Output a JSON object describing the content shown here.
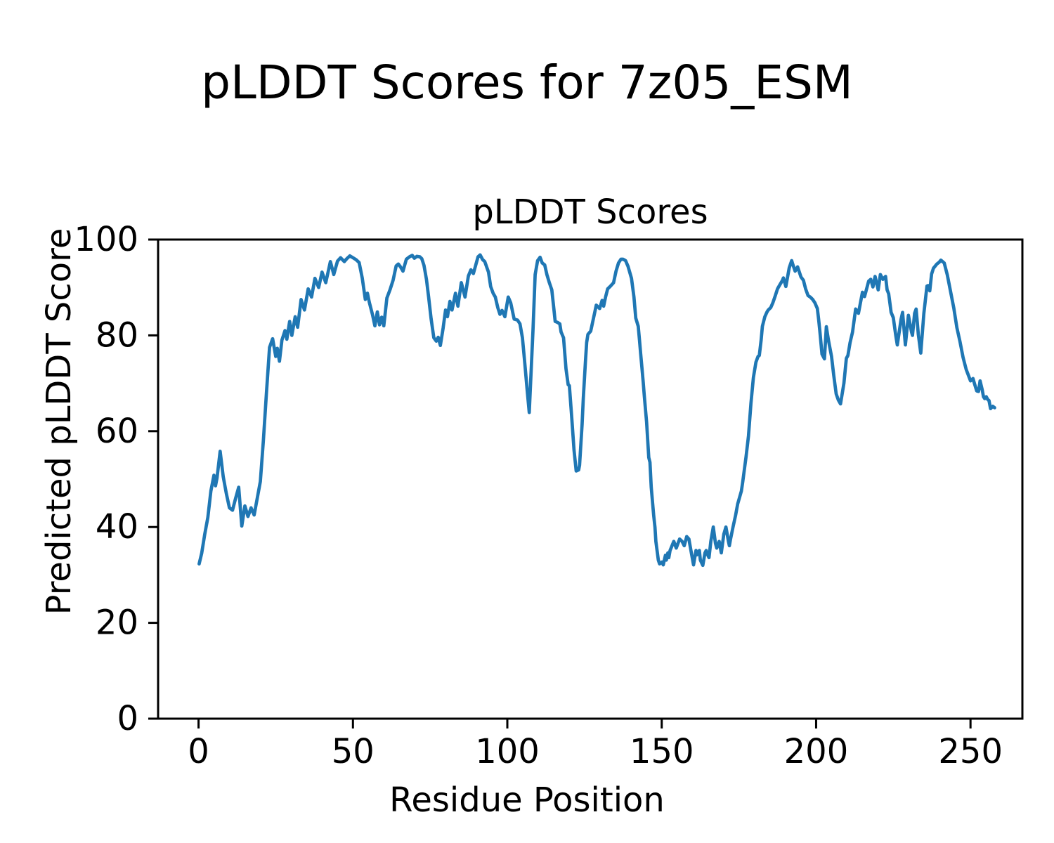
{
  "figure": {
    "suptitle": "pLDDT Scores for 7z05_ESM",
    "axes_title": "pLDDT Scores",
    "xlabel": "Residue Position",
    "ylabel": "Predicted pLDDT Score"
  },
  "colors": {
    "line": "#1f77b4",
    "spine": "#000000",
    "text": "#000000",
    "background": "#ffffff"
  },
  "chart_data": {
    "type": "line",
    "title": "pLDDT Scores",
    "suptitle": "pLDDT Scores for 7z05_ESM",
    "xlabel": "Residue Position",
    "ylabel": "Predicted pLDDT Score",
    "legend": false,
    "grid": false,
    "xlim": [
      -13.1,
      266.8
    ],
    "ylim": [
      0,
      100
    ],
    "xticks": [
      0,
      50,
      100,
      150,
      200,
      250
    ],
    "yticks": [
      0,
      20,
      40,
      60,
      80,
      100
    ],
    "series_name": "pLDDT",
    "points": [
      [
        0.2,
        32.3
      ],
      [
        1,
        34.5
      ],
      [
        2,
        38.5
      ],
      [
        3,
        42
      ],
      [
        4,
        47.5
      ],
      [
        5,
        50.8
      ],
      [
        5.5,
        48.6
      ],
      [
        6,
        50.3
      ],
      [
        7,
        55.8
      ],
      [
        8,
        50.5
      ],
      [
        9,
        47
      ],
      [
        10,
        44
      ],
      [
        11,
        43.5
      ],
      [
        12,
        46
      ],
      [
        13,
        48.3
      ],
      [
        14,
        40.2
      ],
      [
        15,
        44.4
      ],
      [
        16,
        42.2
      ],
      [
        17,
        44
      ],
      [
        18,
        42.5
      ],
      [
        19,
        46
      ],
      [
        20,
        49.5
      ],
      [
        21,
        58
      ],
      [
        22,
        68
      ],
      [
        23,
        77.5
      ],
      [
        24,
        79.3
      ],
      [
        25,
        75.6
      ],
      [
        25.5,
        77.3
      ],
      [
        26.2,
        74.6
      ],
      [
        27,
        79
      ],
      [
        28,
        81
      ],
      [
        28.6,
        79.2
      ],
      [
        29.5,
        82.9
      ],
      [
        30.2,
        80
      ],
      [
        31.3,
        83.9
      ],
      [
        32.1,
        81.7
      ],
      [
        33.2,
        87.5
      ],
      [
        34.3,
        85.3
      ],
      [
        35.5,
        89.7
      ],
      [
        36.6,
        88
      ],
      [
        37.7,
        91.9
      ],
      [
        38.9,
        90
      ],
      [
        40,
        93.2
      ],
      [
        41.2,
        91
      ],
      [
        42.7,
        95.4
      ],
      [
        43.8,
        92.7
      ],
      [
        45,
        95.5
      ],
      [
        46,
        96.2
      ],
      [
        47.2,
        95.4
      ],
      [
        48,
        96
      ],
      [
        49,
        96.6
      ],
      [
        50,
        96.2
      ],
      [
        51,
        95.8
      ],
      [
        52,
        95.2
      ],
      [
        53,
        92
      ],
      [
        54,
        87.5
      ],
      [
        54.7,
        88.8
      ],
      [
        55.3,
        86.9
      ],
      [
        56.3,
        84.4
      ],
      [
        57.1,
        82
      ],
      [
        57.9,
        84.9
      ],
      [
        58.6,
        82.2
      ],
      [
        59.3,
        83.8
      ],
      [
        60,
        82
      ],
      [
        61,
        87.8
      ],
      [
        62,
        89.5
      ],
      [
        63,
        91.5
      ],
      [
        64,
        94.5
      ],
      [
        64.7,
        94.9
      ],
      [
        65.4,
        94.3
      ],
      [
        66.2,
        93.4
      ],
      [
        67.3,
        95.9
      ],
      [
        68.3,
        96.4
      ],
      [
        69.2,
        96.7
      ],
      [
        69.9,
        96.1
      ],
      [
        70.7,
        96.5
      ],
      [
        71.7,
        96.4
      ],
      [
        72.3,
        96
      ],
      [
        73,
        94.6
      ],
      [
        73.8,
        91.7
      ],
      [
        74.5,
        88
      ],
      [
        75.3,
        83.5
      ],
      [
        76.2,
        79.5
      ],
      [
        77,
        78.8
      ],
      [
        77.6,
        79.6
      ],
      [
        78.3,
        77.9
      ],
      [
        79.2,
        81.5
      ],
      [
        80,
        85.3
      ],
      [
        80.6,
        83.9
      ],
      [
        81.4,
        87.1
      ],
      [
        82.1,
        85.3
      ],
      [
        83.2,
        88.8
      ],
      [
        84,
        86.1
      ],
      [
        85.1,
        91
      ],
      [
        86.3,
        88
      ],
      [
        87.4,
        92.4
      ],
      [
        88.2,
        93.7
      ],
      [
        89,
        92.9
      ],
      [
        90.5,
        96.4
      ],
      [
        91.2,
        96.8
      ],
      [
        92,
        95.8
      ],
      [
        92.7,
        95.4
      ],
      [
        93.9,
        93.2
      ],
      [
        94.6,
        90.2
      ],
      [
        95.4,
        88.8
      ],
      [
        96.1,
        88
      ],
      [
        96.9,
        85.8
      ],
      [
        97.6,
        84.4
      ],
      [
        98.3,
        85.2
      ],
      [
        99.2,
        83.9
      ],
      [
        100.3,
        88
      ],
      [
        101.1,
        86.8
      ],
      [
        102.2,
        83.4
      ],
      [
        103.3,
        83.2
      ],
      [
        104.1,
        82.4
      ],
      [
        104.9,
        79.5
      ],
      [
        105.6,
        74.6
      ],
      [
        106.4,
        68.8
      ],
      [
        107.1,
        63.9
      ],
      [
        108.3,
        81
      ],
      [
        109,
        92.7
      ],
      [
        109.8,
        95.6
      ],
      [
        110.6,
        96.3
      ],
      [
        111.3,
        95.1
      ],
      [
        112.1,
        94.7
      ],
      [
        112.8,
        92.7
      ],
      [
        113.6,
        91
      ],
      [
        114.4,
        89.5
      ],
      [
        115.1,
        85.3
      ],
      [
        115.5,
        82.9
      ],
      [
        116.3,
        82.7
      ],
      [
        117,
        82.4
      ],
      [
        117.4,
        80.7
      ],
      [
        118.2,
        79.5
      ],
      [
        119,
        73
      ],
      [
        119.7,
        69.7
      ],
      [
        120.1,
        69.5
      ],
      [
        120.8,
        63.4
      ],
      [
        121.6,
        56.1
      ],
      [
        122.3,
        51.7
      ],
      [
        123.1,
        51.9
      ],
      [
        123.4,
        52.9
      ],
      [
        124.2,
        61.4
      ],
      [
        124.6,
        66.8
      ],
      [
        125.3,
        74.6
      ],
      [
        125.7,
        78.5
      ],
      [
        126.1,
        80.2
      ],
      [
        127,
        80.9
      ],
      [
        128,
        83.9
      ],
      [
        128.8,
        86.3
      ],
      [
        129.9,
        85.6
      ],
      [
        130.7,
        87.3
      ],
      [
        131.2,
        86.1
      ],
      [
        131.8,
        88
      ],
      [
        132.5,
        89.7
      ],
      [
        133.3,
        90.2
      ],
      [
        134.4,
        91
      ],
      [
        135.2,
        93.4
      ],
      [
        136,
        95.1
      ],
      [
        136.8,
        95.9
      ],
      [
        137.5,
        95.9
      ],
      [
        138.3,
        95.6
      ],
      [
        139.1,
        94.4
      ],
      [
        140.2,
        91.9
      ],
      [
        141,
        88
      ],
      [
        141.6,
        83.6
      ],
      [
        142.4,
        81.9
      ],
      [
        142.8,
        79
      ],
      [
        143.2,
        76.1
      ],
      [
        143.6,
        73.2
      ],
      [
        144,
        70.2
      ],
      [
        144.3,
        67.8
      ],
      [
        144.7,
        64.9
      ],
      [
        145.1,
        61.9
      ],
      [
        145.8,
        54.5
      ],
      [
        146.2,
        53.5
      ],
      [
        146.6,
        48.3
      ],
      [
        147.4,
        42.4
      ],
      [
        147.8,
        40
      ],
      [
        148.1,
        37
      ],
      [
        148.5,
        35.1
      ],
      [
        148.9,
        33.1
      ],
      [
        149.3,
        32.3
      ],
      [
        150.1,
        32.7
      ],
      [
        150.5,
        32.1
      ],
      [
        151.2,
        34.1
      ],
      [
        151.5,
        33.1
      ],
      [
        152,
        34.6
      ],
      [
        152.3,
        33.6
      ],
      [
        152.7,
        35.1
      ],
      [
        153.9,
        37
      ],
      [
        154.7,
        35.6
      ],
      [
        155.8,
        37.5
      ],
      [
        156.6,
        37
      ],
      [
        157.3,
        36.1
      ],
      [
        158.1,
        38
      ],
      [
        158.8,
        37.5
      ],
      [
        159.6,
        34.6
      ],
      [
        160.3,
        32.1
      ],
      [
        161.1,
        35.1
      ],
      [
        161.4,
        34.2
      ],
      [
        162.2,
        35.1
      ],
      [
        162.5,
        33.1
      ],
      [
        163.3,
        32
      ],
      [
        164,
        34.6
      ],
      [
        164.4,
        35.1
      ],
      [
        164.8,
        34.3
      ],
      [
        165.3,
        33.6
      ],
      [
        165.9,
        37
      ],
      [
        166.7,
        40
      ],
      [
        167.4,
        36.6
      ],
      [
        167.8,
        35.6
      ],
      [
        168.6,
        37
      ],
      [
        169.3,
        34.6
      ],
      [
        170.1,
        38.5
      ],
      [
        170.8,
        40
      ],
      [
        171.6,
        37
      ],
      [
        171.9,
        36.1
      ],
      [
        172.3,
        37.5
      ],
      [
        173.1,
        40
      ],
      [
        173.9,
        42.4
      ],
      [
        174.6,
        44.8
      ],
      [
        175.8,
        47.5
      ],
      [
        176.2,
        49.3
      ],
      [
        177.3,
        54.6
      ],
      [
        178.1,
        59
      ],
      [
        178.9,
        65.8
      ],
      [
        179.7,
        71.2
      ],
      [
        180.5,
        74.4
      ],
      [
        181.2,
        75.6
      ],
      [
        181.6,
        75.8
      ],
      [
        182.2,
        79
      ],
      [
        182.6,
        81.9
      ],
      [
        183.4,
        83.9
      ],
      [
        184.1,
        84.9
      ],
      [
        184.5,
        85.3
      ],
      [
        185.3,
        85.8
      ],
      [
        186,
        86.8
      ],
      [
        186.8,
        88.3
      ],
      [
        187.5,
        89.7
      ],
      [
        188.3,
        90.6
      ],
      [
        189.1,
        91.5
      ],
      [
        189.4,
        92
      ],
      [
        190.2,
        90.2
      ],
      [
        191.3,
        94.1
      ],
      [
        192.1,
        95.6
      ],
      [
        192.4,
        94.9
      ],
      [
        193.2,
        93.4
      ],
      [
        194,
        94.3
      ],
      [
        195.1,
        92.2
      ],
      [
        195.9,
        91.5
      ],
      [
        196.6,
        89.7
      ],
      [
        197.4,
        88.3
      ],
      [
        198.1,
        88
      ],
      [
        198.9,
        87.5
      ],
      [
        199.6,
        86.8
      ],
      [
        200.4,
        85.6
      ],
      [
        200.8,
        83.4
      ],
      [
        201.2,
        81
      ],
      [
        201.9,
        76.1
      ],
      [
        202.7,
        75.1
      ],
      [
        203.3,
        81.8
      ],
      [
        204,
        79
      ],
      [
        205,
        75.6
      ],
      [
        205.7,
        71.7
      ],
      [
        206.5,
        67.8
      ],
      [
        207.2,
        66.5
      ],
      [
        207.9,
        65.7
      ],
      [
        209,
        70
      ],
      [
        209.8,
        75.2
      ],
      [
        210.3,
        75.8
      ],
      [
        211,
        78.5
      ],
      [
        211.8,
        80.7
      ],
      [
        212.8,
        85.5
      ],
      [
        213.7,
        84.6
      ],
      [
        215,
        89
      ],
      [
        215.7,
        88.1
      ],
      [
        217,
        91.3
      ],
      [
        217.7,
        91.7
      ],
      [
        218.4,
        90.1
      ],
      [
        219.1,
        92.3
      ],
      [
        220.1,
        89.5
      ],
      [
        220.8,
        92.7
      ],
      [
        221.6,
        91.7
      ],
      [
        222.5,
        92.3
      ],
      [
        223,
        89.5
      ],
      [
        223.5,
        88.7
      ],
      [
        224.3,
        84.8
      ],
      [
        225,
        83.7
      ],
      [
        225.8,
        80
      ],
      [
        226.3,
        78
      ],
      [
        227.5,
        83.3
      ],
      [
        228,
        84.8
      ],
      [
        228.9,
        78
      ],
      [
        229.9,
        84.2
      ],
      [
        230.9,
        80.7
      ],
      [
        231.2,
        80
      ],
      [
        231.9,
        84.6
      ],
      [
        232.4,
        85.5
      ],
      [
        233.1,
        80.2
      ],
      [
        233.9,
        76.3
      ],
      [
        234.9,
        84.6
      ],
      [
        235.9,
        90.3
      ],
      [
        236.3,
        90.4
      ],
      [
        236.8,
        89.3
      ],
      [
        237.4,
        92.8
      ],
      [
        238,
        94
      ],
      [
        239.1,
        94.9
      ],
      [
        239.9,
        95.3
      ],
      [
        240.4,
        95.7
      ],
      [
        241.5,
        95.1
      ],
      [
        242.5,
        92.6
      ],
      [
        243.5,
        89.3
      ],
      [
        244.6,
        85.7
      ],
      [
        245.6,
        81.6
      ],
      [
        246.6,
        78.7
      ],
      [
        247.6,
        75.4
      ],
      [
        248.6,
        72.9
      ],
      [
        249.3,
        71.7
      ],
      [
        250,
        70.5
      ],
      [
        250.8,
        71
      ],
      [
        251.3,
        69.9
      ],
      [
        252,
        68.4
      ],
      [
        252.6,
        68.3
      ],
      [
        253.1,
        70.5
      ],
      [
        253.8,
        68.6
      ],
      [
        254.2,
        67.2
      ],
      [
        254.6,
        66.8
      ],
      [
        255.1,
        67.2
      ],
      [
        255.6,
        66.6
      ],
      [
        256,
        66.4
      ],
      [
        256.5,
        64.7
      ],
      [
        257.2,
        65.2
      ],
      [
        257.8,
        64.9
      ]
    ]
  }
}
